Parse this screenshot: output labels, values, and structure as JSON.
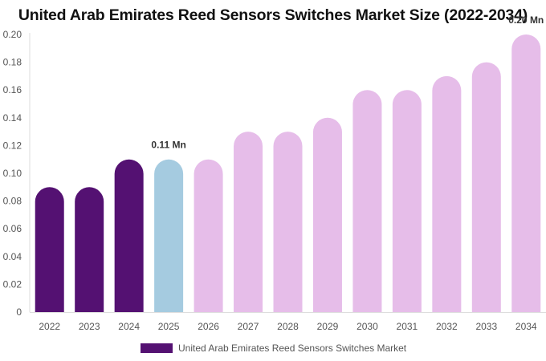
{
  "chart_data": {
    "type": "bar",
    "title": "United Arab Emirates Reed Sensors Switches Market Size (2022-2034)",
    "categories": [
      "2022",
      "2023",
      "2024",
      "2025",
      "2026",
      "2027",
      "2028",
      "2029",
      "2030",
      "2031",
      "2032",
      "2033",
      "2034"
    ],
    "series": [
      {
        "name": "United Arab Emirates Reed Sensors Switches Market",
        "values": [
          0.09,
          0.09,
          0.11,
          0.11,
          0.11,
          0.13,
          0.13,
          0.14,
          0.16,
          0.16,
          0.17,
          0.18,
          0.2
        ]
      }
    ],
    "bar_colors": [
      "#541172",
      "#541172",
      "#541172",
      "#a5cbe0",
      "#e6bde9",
      "#e6bde9",
      "#e6bde9",
      "#e6bde9",
      "#e6bde9",
      "#e6bde9",
      "#e6bde9",
      "#e6bde9",
      "#e6bde9"
    ],
    "legend_color": "#541172",
    "yticks": [
      "0",
      "0.02",
      "0.04",
      "0.06",
      "0.08",
      "0.10",
      "0.12",
      "0.14",
      "0.16",
      "0.18",
      "0.20"
    ],
    "ylim": [
      0,
      0.2
    ],
    "data_labels": [
      {
        "index": 3,
        "text": "0.11 Mn"
      },
      {
        "index": 12,
        "text": "0.20 Mn"
      }
    ],
    "grid": false,
    "legend_position": "bottom"
  }
}
